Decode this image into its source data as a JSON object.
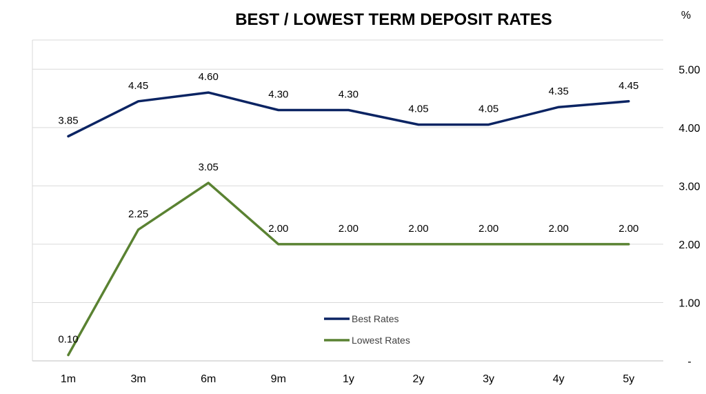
{
  "chart_data": {
    "type": "line",
    "title": "BEST / LOWEST TERM DEPOSIT RATES",
    "y_unit": "%",
    "categories": [
      "1m",
      "3m",
      "6m",
      "9m",
      "1y",
      "2y",
      "3y",
      "4y",
      "5y"
    ],
    "ylim": [
      0,
      5.5
    ],
    "y_ticks": [
      {
        "value": 0,
        "label": "-"
      },
      {
        "value": 1,
        "label": "1.00"
      },
      {
        "value": 2,
        "label": "2.00"
      },
      {
        "value": 3,
        "label": "3.00"
      },
      {
        "value": 4,
        "label": "4.00"
      },
      {
        "value": 5,
        "label": "5.00"
      }
    ],
    "y_axis_side": "right",
    "grid": true,
    "legend_position": "bottom-center",
    "series": [
      {
        "name": "Best Rates",
        "color": "#0b2463",
        "values": [
          3.85,
          4.45,
          4.6,
          4.3,
          4.3,
          4.05,
          4.05,
          4.35,
          4.45
        ],
        "labels": [
          "3.85",
          "4.45",
          "4.60",
          "4.30",
          "4.30",
          "4.05",
          "4.05",
          "4.35",
          "4.45"
        ]
      },
      {
        "name": "Lowest Rates",
        "color": "#5a8232",
        "values": [
          0.1,
          2.25,
          3.05,
          2.0,
          2.0,
          2.0,
          2.0,
          2.0,
          2.0
        ],
        "labels": [
          "0.10",
          "2.25",
          "3.05",
          "2.00",
          "2.00",
          "2.00",
          "2.00",
          "2.00",
          "2.00"
        ]
      }
    ]
  }
}
